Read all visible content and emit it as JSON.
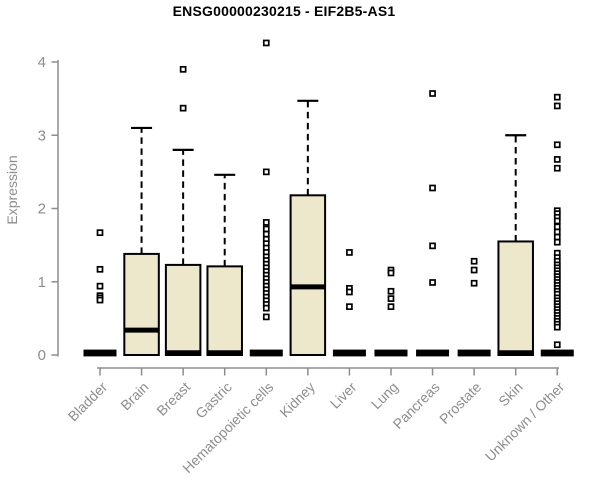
{
  "chart_data": {
    "type": "boxplot",
    "title": "ENSG00000230215 - EIF2B5-AS1",
    "ylabel": "Expression",
    "xlabel": "",
    "ylim": [
      0,
      4.3
    ],
    "yticks": [
      0,
      1,
      2,
      3,
      4
    ],
    "grid": false,
    "legend": null,
    "colors": {
      "box_fill": "#ede8cc",
      "box_stroke": "#000000",
      "axis_line": "#8d8d8d",
      "axis_text": "#8d8d8d",
      "title_text": "#000000",
      "outlier_fill": "#ffffff"
    },
    "categories": [
      "Bladder",
      "Brain",
      "Breast",
      "Gastric",
      "Hematopoietic cells",
      "Kidney",
      "Liver",
      "Lung",
      "Pancreas",
      "Prostate",
      "Skin",
      "Unknown / Other"
    ],
    "series": [
      {
        "name": "Bladder",
        "q1": 0,
        "median": 0,
        "q3": 0,
        "whisker_low": 0,
        "whisker_high": 0,
        "outliers": [
          1.67,
          1.17,
          0.94,
          0.81,
          0.78,
          0.75
        ]
      },
      {
        "name": "Brain",
        "q1": 0,
        "median": 0.34,
        "q3": 1.38,
        "whisker_low": 0,
        "whisker_high": 3.1,
        "outliers": []
      },
      {
        "name": "Breast",
        "q1": 0,
        "median": 0,
        "q3": 1.23,
        "whisker_low": 0,
        "whisker_high": 2.8,
        "outliers": [
          3.9,
          3.37
        ]
      },
      {
        "name": "Gastric",
        "q1": 0,
        "median": 0,
        "q3": 1.21,
        "whisker_low": 0,
        "whisker_high": 2.46,
        "outliers": []
      },
      {
        "name": "Hematopoietic cells",
        "q1": 0,
        "median": 0,
        "q3": 0,
        "whisker_low": 0,
        "whisker_high": 0,
        "outliers": [
          4.26,
          2.5,
          1.81,
          1.72,
          1.65,
          1.58,
          1.52,
          1.46,
          1.4,
          1.34,
          1.29,
          1.24,
          1.19,
          1.14,
          1.09,
          1.04,
          0.99,
          0.94,
          0.89,
          0.84,
          0.79,
          0.74,
          0.69,
          0.64,
          0.52
        ]
      },
      {
        "name": "Kidney",
        "q1": 0,
        "median": 0.93,
        "q3": 2.18,
        "whisker_low": 0,
        "whisker_high": 3.47,
        "outliers": []
      },
      {
        "name": "Liver",
        "q1": 0,
        "median": 0,
        "q3": 0,
        "whisker_low": 0,
        "whisker_high": 0,
        "outliers": [
          1.4,
          0.91,
          0.86,
          0.66
        ]
      },
      {
        "name": "Lung",
        "q1": 0,
        "median": 0,
        "q3": 0,
        "whisker_low": 0,
        "whisker_high": 0,
        "outliers": [
          1.16,
          1.12,
          0.87,
          0.77,
          0.66
        ]
      },
      {
        "name": "Pancreas",
        "q1": 0,
        "median": 0,
        "q3": 0,
        "whisker_low": 0,
        "whisker_high": 0,
        "outliers": [
          3.57,
          2.28,
          1.49,
          0.99
        ]
      },
      {
        "name": "Prostate",
        "q1": 0,
        "median": 0,
        "q3": 0,
        "whisker_low": 0,
        "whisker_high": 0,
        "outliers": [
          1.28,
          1.16,
          0.98
        ]
      },
      {
        "name": "Skin",
        "q1": 0,
        "median": 0,
        "q3": 1.55,
        "whisker_low": 0,
        "whisker_high": 3.0,
        "outliers": []
      },
      {
        "name": "Unknown / Other",
        "q1": 0,
        "median": 0,
        "q3": 0,
        "whisker_low": 0,
        "whisker_high": 0,
        "outliers": [
          3.52,
          3.4,
          2.87,
          2.67,
          2.55,
          1.97,
          1.93,
          1.88,
          1.83,
          1.75,
          1.68,
          1.61,
          1.54,
          1.39,
          1.33,
          1.28,
          1.23,
          1.19,
          1.15,
          1.11,
          1.07,
          1.03,
          0.99,
          0.95,
          0.91,
          0.87,
          0.83,
          0.78,
          0.74,
          0.7,
          0.66,
          0.62,
          0.58,
          0.54,
          0.5,
          0.46,
          0.42,
          0.38,
          0.14
        ]
      }
    ]
  }
}
